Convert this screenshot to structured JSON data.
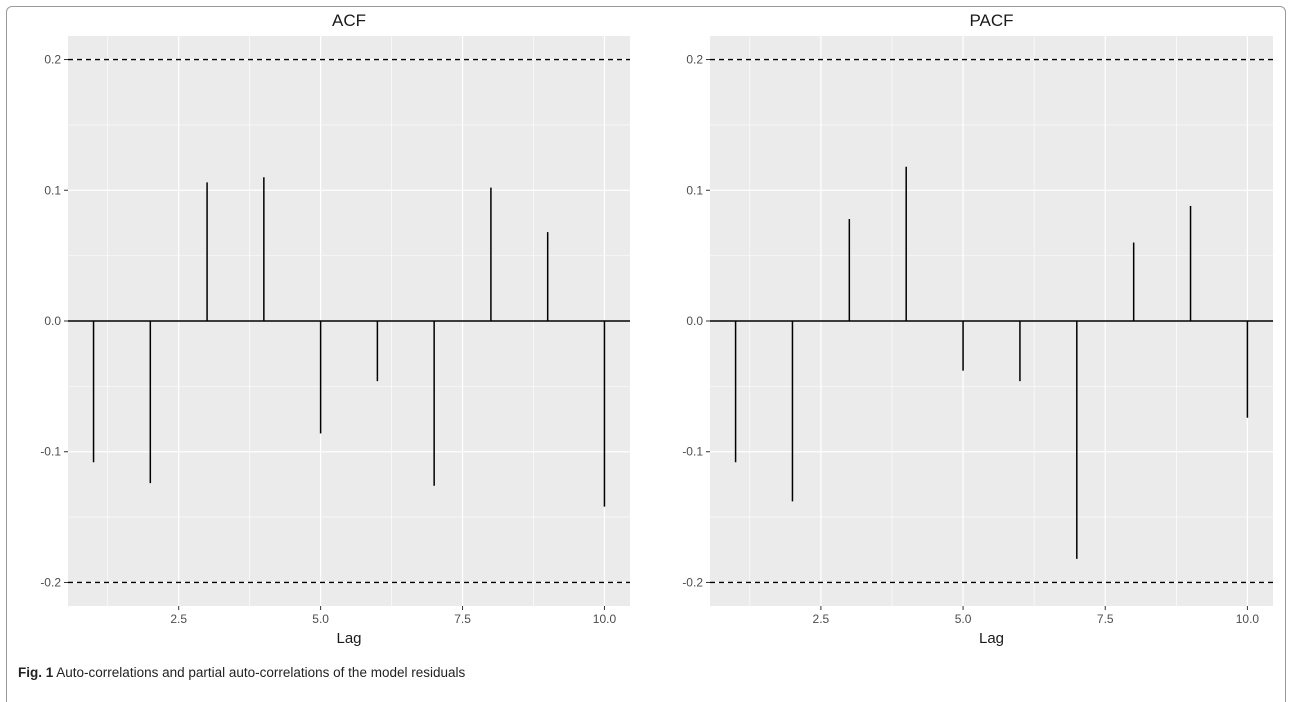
{
  "figure": {
    "caption_label": "Fig. 1",
    "caption_text": "Auto-correlations and partial auto-correlations of the model residuals"
  },
  "chart_data": [
    {
      "type": "bar",
      "title": "ACF",
      "xlabel": "Lag",
      "ylabel": "",
      "x": [
        1,
        2,
        3,
        4,
        5,
        6,
        7,
        8,
        9,
        10
      ],
      "values": [
        -0.108,
        -0.124,
        0.106,
        0.11,
        -0.086,
        -0.046,
        -0.126,
        0.102,
        0.068,
        -0.142
      ],
      "xlim": [
        0.55,
        10.45
      ],
      "ylim": [
        -0.218,
        0.218
      ],
      "xticks": [
        2.5,
        5.0,
        7.5,
        10.0
      ],
      "xtick_labels": [
        "2.5",
        "5.0",
        "7.5",
        "10.0"
      ],
      "yticks": [
        -0.2,
        -0.1,
        0.0,
        0.1,
        0.2
      ],
      "ytick_labels": [
        "-0.2",
        "-0.1",
        "0.0",
        "0.1",
        "0.2"
      ],
      "confidence_bounds": [
        -0.2,
        0.2
      ],
      "grid": true
    },
    {
      "type": "bar",
      "title": "PACF",
      "xlabel": "Lag",
      "ylabel": "",
      "x": [
        1,
        2,
        3,
        4,
        5,
        6,
        7,
        8,
        9,
        10
      ],
      "values": [
        -0.108,
        -0.138,
        0.078,
        0.118,
        -0.038,
        -0.046,
        -0.182,
        0.06,
        0.088,
        -0.074
      ],
      "xlim": [
        0.55,
        10.45
      ],
      "ylim": [
        -0.218,
        0.218
      ],
      "xticks": [
        2.5,
        5.0,
        7.5,
        10.0
      ],
      "xtick_labels": [
        "2.5",
        "5.0",
        "7.5",
        "10.0"
      ],
      "yticks": [
        -0.2,
        -0.1,
        0.0,
        0.1,
        0.2
      ],
      "ytick_labels": [
        "-0.2",
        "-0.1",
        "0.0",
        "0.1",
        "0.2"
      ],
      "confidence_bounds": [
        -0.2,
        0.2
      ],
      "grid": true
    }
  ],
  "colors": {
    "panel_bg": "#ebebeb",
    "grid": "#ffffff",
    "bar": "#000000",
    "text": "#4d4d4d",
    "title": "#1a1a1a"
  }
}
